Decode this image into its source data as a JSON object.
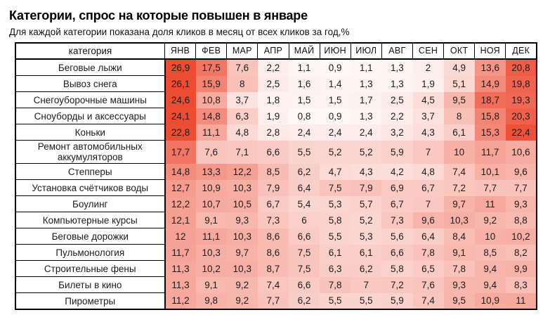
{
  "page": {
    "title": "Категории, спрос на которые повышен в январе",
    "subtitle": "Для каждой категории показана доля кликов в месяц от всех кликов за год,%"
  },
  "chart_data": {
    "type": "heatmap",
    "title": "Категории, спрос на которые повышен в январе",
    "subtitle": "Для каждой категории показана доля кликов в месяц от всех кликов за год,%",
    "unit": "%",
    "category_header": "категория",
    "columns": [
      "ЯНВ",
      "ФЕВ",
      "МАР",
      "АПР",
      "МАЙ",
      "ИЮН",
      "ИЮЛ",
      "АВГ",
      "СЕН",
      "ОКТ",
      "НОЯ",
      "ДЕК"
    ],
    "rows": [
      {
        "category": "Беговые лыжи",
        "values": [
          26.9,
          17.5,
          7.6,
          2.2,
          1.1,
          0.9,
          1.1,
          1.3,
          2,
          4.9,
          13.6,
          20.8
        ]
      },
      {
        "category": "Вывоз снега",
        "values": [
          26.1,
          15.9,
          8,
          2.5,
          1.6,
          1.4,
          1.3,
          1.3,
          1.9,
          5.1,
          14.9,
          19.8
        ]
      },
      {
        "category": "Снегоуборочные машины",
        "values": [
          24.6,
          10.8,
          3.7,
          1.8,
          1.5,
          1.5,
          1.7,
          2.5,
          4.5,
          9.5,
          18.7,
          19.3
        ]
      },
      {
        "category": "Сноуборды и аксессуары",
        "values": [
          24.1,
          14.8,
          6.3,
          1.9,
          0.8,
          0.9,
          1.3,
          2.2,
          3.7,
          8,
          15.8,
          20.3
        ]
      },
      {
        "category": "Коньки",
        "values": [
          22.8,
          11.1,
          4.8,
          2.8,
          2.4,
          2.4,
          2.4,
          3.2,
          4.3,
          6.1,
          15.3,
          22.4
        ]
      },
      {
        "category": "Ремонт автомобильных аккумуляторов",
        "values": [
          17.7,
          7.6,
          7.1,
          6.6,
          5.5,
          5.2,
          5.2,
          5.9,
          7,
          10,
          11.7,
          10.6
        ]
      },
      {
        "category": "Степперы",
        "values": [
          14.8,
          13.3,
          12.2,
          8.5,
          6.2,
          4.7,
          4.3,
          4.2,
          4.8,
          7.4,
          10.1,
          9.6
        ]
      },
      {
        "category": "Установка счётчиков воды",
        "values": [
          12.7,
          10.9,
          10.3,
          7.9,
          6.4,
          7.5,
          7.9,
          6.9,
          6.7,
          7.2,
          7.7,
          7.7
        ]
      },
      {
        "category": "Боулинг",
        "values": [
          12.2,
          10.7,
          10.5,
          6.7,
          5.4,
          5.3,
          5.7,
          6.7,
          7,
          9.7,
          11,
          9.3
        ]
      },
      {
        "category": "Компьютерные курсы",
        "values": [
          12.1,
          9.1,
          9.3,
          7.3,
          6,
          5.8,
          5.2,
          7.3,
          9.6,
          10.3,
          9.2,
          8.8
        ]
      },
      {
        "category": "Беговые дорожки",
        "values": [
          12,
          11.1,
          10.3,
          8.6,
          6.6,
          5.5,
          5.3,
          5.6,
          6.4,
          8.4,
          10,
          10.2
        ]
      },
      {
        "category": "Пульмонология",
        "values": [
          11.7,
          10.3,
          9.7,
          8.6,
          7.5,
          6.1,
          6.1,
          6.6,
          7.8,
          9.1,
          8.5,
          8.2
        ]
      },
      {
        "category": "Строительные фены",
        "values": [
          11.3,
          10.2,
          10.3,
          8.7,
          7.5,
          6.3,
          6.2,
          5.8,
          6.5,
          7.8,
          9.4,
          9.9
        ]
      },
      {
        "category": "Билеты в кино",
        "values": [
          11.3,
          9.1,
          9.2,
          7.4,
          6.6,
          7.8,
          7,
          7.2,
          7.6,
          9.3,
          9.4,
          8.3
        ]
      },
      {
        "category": "Пирометры",
        "values": [
          11.2,
          9.8,
          9.2,
          7.7,
          6.2,
          5.5,
          5.5,
          5.9,
          7.4,
          9.5,
          10.9,
          11
        ]
      }
    ],
    "color_scale": {
      "min": 0,
      "max": 23,
      "min_color": "#ffffff",
      "max_color": "#ee4b33"
    },
    "value_format": "comma_decimal",
    "layout": {
      "legend": "none",
      "grid": "borders on header and category column only; heat cells unbordered"
    }
  }
}
